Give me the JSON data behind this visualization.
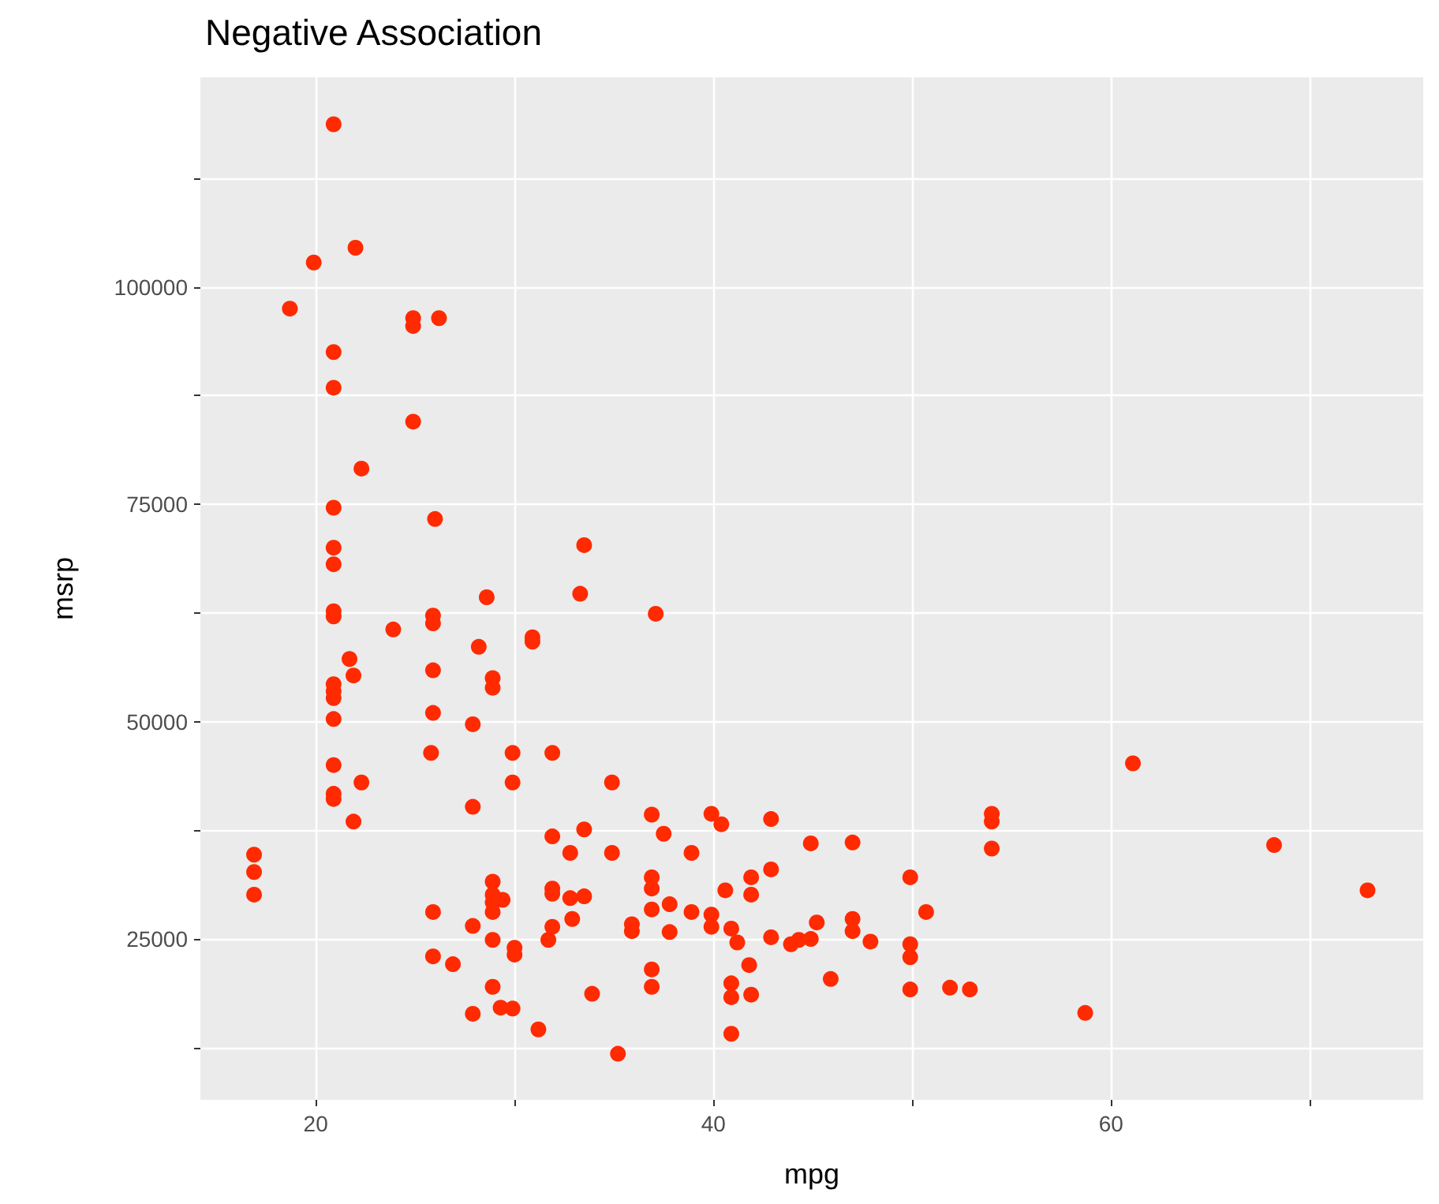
{
  "chart_data": {
    "type": "scatter",
    "title": "Negative Association",
    "xlabel": "mpg",
    "ylabel": "msrp",
    "grid": true,
    "marker": "circle",
    "xlim": [
      14.2,
      75.7
    ],
    "xticks": [
      20,
      {
        "value": 30,
        "label": null
      },
      40,
      {
        "value": 50,
        "label": null
      },
      60,
      {
        "value": 70,
        "label": null
      }
    ],
    "ylim": [
      6500,
      124100
    ],
    "yticks": [
      {
        "value": 12500,
        "label": null
      },
      25000,
      {
        "value": 37500,
        "label": null
      },
      50000,
      {
        "value": 62500,
        "label": null
      },
      75000,
      {
        "value": 87500,
        "label": null
      },
      100000,
      {
        "value": 112500,
        "label": null
      }
    ],
    "series": [
      {
        "color": "#ff2a00",
        "x": [
          20.9,
          22.0,
          19.9,
          18.7,
          24.9,
          24.9,
          26.2,
          20.9,
          20.9,
          24.9,
          22.3,
          20.9,
          26.0,
          20.9,
          33.5,
          20.9,
          33.3,
          28.6,
          37.1,
          20.9,
          20.9,
          23.9,
          25.9,
          25.9,
          28.2,
          30.9,
          30.9,
          21.7,
          21.9,
          25.9,
          28.9,
          28.9,
          20.9,
          20.9,
          20.9,
          25.9,
          20.9,
          27.9,
          25.8,
          29.9,
          31.9,
          20.9,
          22.3,
          29.9,
          34.9,
          20.9,
          20.9,
          27.9,
          21.9,
          36.9,
          37.5,
          31.9,
          33.5,
          16.9,
          16.9,
          16.9,
          32.8,
          34.9,
          28.9,
          28.9,
          28.9,
          29.4,
          28.9,
          25.9,
          31.9,
          31.9,
          32.8,
          33.5,
          36.9,
          36.9,
          36.9,
          37.8,
          32.9,
          27.9,
          31.9,
          31.7,
          35.9,
          35.9,
          37.8,
          28.9,
          30.0,
          30.0,
          25.9,
          26.9,
          36.9,
          36.9,
          33.9,
          28.9,
          29.3,
          29.9,
          27.9,
          31.2,
          35.2,
          39.9,
          40.4,
          42.9,
          38.9,
          44.9,
          47.0,
          54.0,
          54.0,
          54.0,
          38.9,
          39.9,
          39.9,
          40.6,
          41.9,
          41.9,
          42.9,
          40.9,
          41.2,
          42.9,
          43.9,
          44.3,
          44.9,
          45.2,
          47.0,
          47.0,
          47.9,
          49.9,
          50.7,
          49.9,
          49.9,
          49.9,
          51.9,
          52.9,
          41.8,
          40.9,
          40.9,
          41.9,
          45.9,
          40.9,
          61.1,
          68.2,
          72.9,
          58.7
        ],
        "values": [
          118700,
          104500,
          102800,
          97500,
          96400,
          95500,
          96400,
          92500,
          88400,
          84500,
          79100,
          74600,
          73300,
          70000,
          70300,
          68100,
          64700,
          64300,
          62400,
          62700,
          62100,
          60600,
          62200,
          61300,
          58600,
          59700,
          59200,
          57200,
          55300,
          55900,
          55000,
          53900,
          54300,
          53500,
          52700,
          51000,
          50300,
          49700,
          46400,
          46400,
          46400,
          45000,
          43000,
          43000,
          43000,
          41700,
          41100,
          40200,
          38500,
          39300,
          37100,
          36800,
          37600,
          34700,
          32700,
          30100,
          34900,
          34900,
          31600,
          30100,
          29200,
          29500,
          28100,
          28100,
          30800,
          30200,
          29700,
          29900,
          32100,
          30800,
          28400,
          29000,
          27300,
          26500,
          26400,
          24900,
          26700,
          25900,
          25800,
          24900,
          24000,
          23200,
          23000,
          22100,
          21500,
          19500,
          18700,
          19500,
          17100,
          17000,
          16400,
          14600,
          11800,
          39400,
          38200,
          38800,
          34900,
          36000,
          36100,
          39400,
          38500,
          35400,
          28100,
          27800,
          26400,
          30600,
          32100,
          30100,
          33000,
          26200,
          24600,
          25200,
          24400,
          24900,
          25000,
          26900,
          27300,
          25900,
          24700,
          32100,
          28100,
          24400,
          22900,
          19200,
          19400,
          19200,
          22000,
          19900,
          18300,
          18600,
          20400,
          14100,
          45200,
          35800,
          30600,
          16500
        ]
      }
    ]
  }
}
